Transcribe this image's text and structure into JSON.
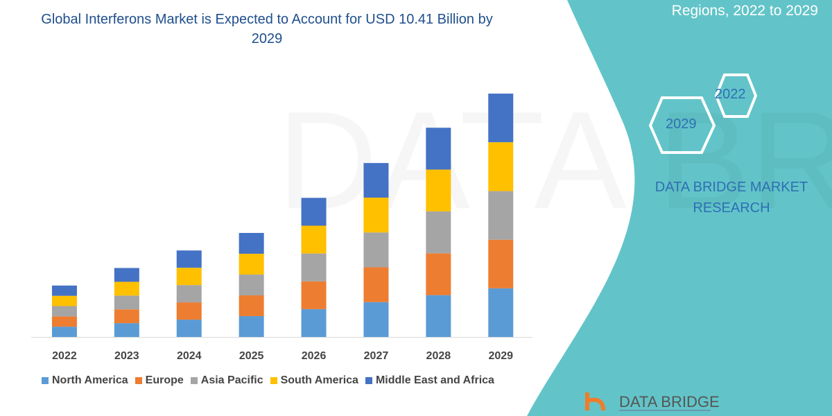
{
  "title": "Global Interferons Market is Expected to Account for USD 10.41 Billion by 2029",
  "side_panel": {
    "title_visible": "Regions, 2022 to 2029",
    "hex_labels": [
      "2022",
      "2029"
    ],
    "brand": "DATA BRIDGE MARKET RESEARCH",
    "logo_text": "DATA BRIDGE"
  },
  "colors": {
    "panel": "#62c4c8",
    "title": "#1f4e8c"
  },
  "chart_data": {
    "type": "bar",
    "stacked": true,
    "title": "Global Interferons Market is Expected to Account for USD 10.41 Billion by 2029",
    "categories": [
      "2022",
      "2023",
      "2024",
      "2025",
      "2026",
      "2027",
      "2028",
      "2029"
    ],
    "series": [
      {
        "name": "North America",
        "color": "#5b9bd5",
        "values": [
          0.44,
          0.59,
          0.74,
          0.89,
          1.19,
          1.49,
          1.79,
          2.08
        ]
      },
      {
        "name": "Europe",
        "color": "#ed7d31",
        "values": [
          0.44,
          0.59,
          0.74,
          0.89,
          1.19,
          1.49,
          1.79,
          2.08
        ]
      },
      {
        "name": "Asia Pacific",
        "color": "#a5a5a5",
        "values": [
          0.44,
          0.59,
          0.74,
          0.89,
          1.19,
          1.49,
          1.79,
          2.08
        ]
      },
      {
        "name": "South America",
        "color": "#ffc000",
        "values": [
          0.44,
          0.59,
          0.74,
          0.89,
          1.19,
          1.49,
          1.79,
          2.09
        ]
      },
      {
        "name": "Middle East and Africa",
        "color": "#4472c4",
        "values": [
          0.44,
          0.59,
          0.74,
          0.89,
          1.19,
          1.48,
          1.79,
          2.08
        ]
      }
    ],
    "xlabel": "",
    "ylabel": "",
    "ylim": [
      0,
      10.41
    ],
    "grid": false,
    "legend": "bottom"
  }
}
